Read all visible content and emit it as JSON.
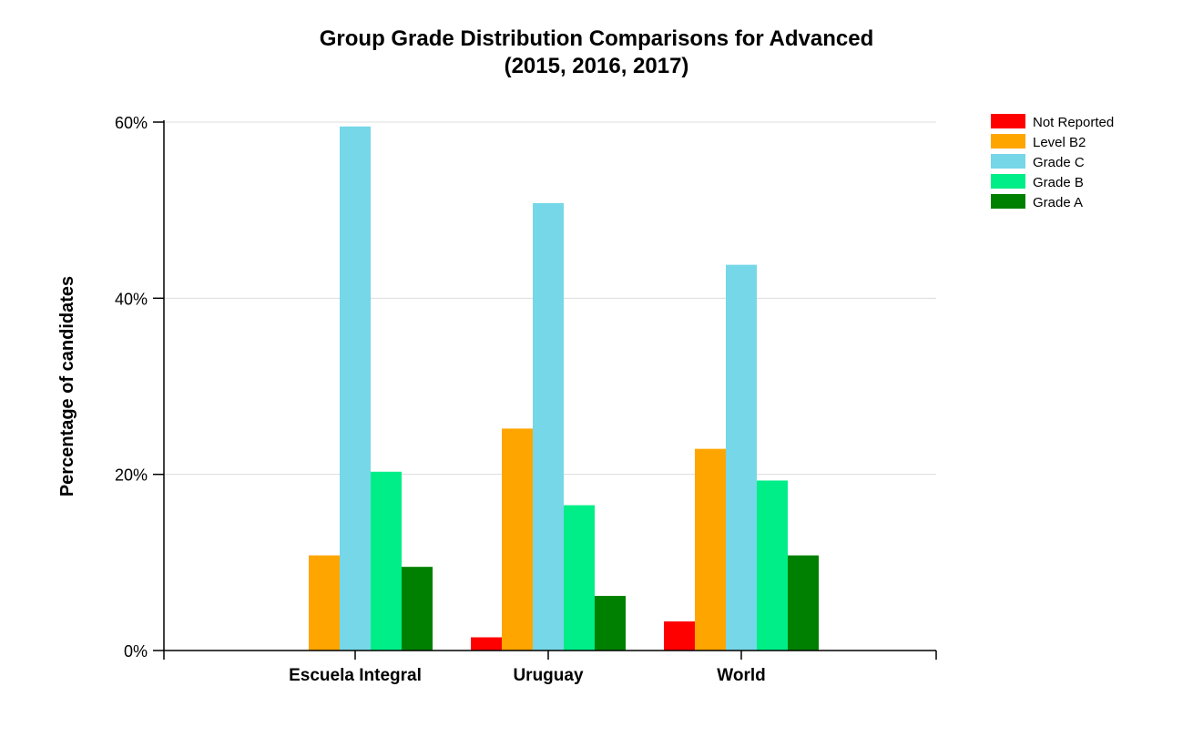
{
  "chart_data": {
    "type": "bar",
    "title": "Group Grade Distribution Comparisons for Advanced",
    "subtitle": "(2015, 2016, 2017)",
    "xlabel": "",
    "ylabel": "Percentage of candidates",
    "ylim": [
      0,
      60
    ],
    "yticks": [
      0,
      20,
      40,
      60
    ],
    "ytick_labels": [
      "0%",
      "20%",
      "40%",
      "60%"
    ],
    "grid": true,
    "legend_position": "top-right",
    "categories": [
      "Escuela Integral",
      "Uruguay",
      "World"
    ],
    "series": [
      {
        "name": "Not Reported",
        "color": "#ff0000",
        "values": [
          0,
          1.5,
          3.3
        ]
      },
      {
        "name": "Level B2",
        "color": "#ffa500",
        "values": [
          10.8,
          25.2,
          22.9
        ]
      },
      {
        "name": "Grade C",
        "color": "#76d7e8",
        "values": [
          59.5,
          50.8,
          43.8
        ]
      },
      {
        "name": "Grade B",
        "color": "#00ee88",
        "values": [
          20.3,
          16.5,
          19.3
        ]
      },
      {
        "name": "Grade A",
        "color": "#008000",
        "values": [
          9.5,
          6.2,
          10.8
        ]
      }
    ]
  }
}
